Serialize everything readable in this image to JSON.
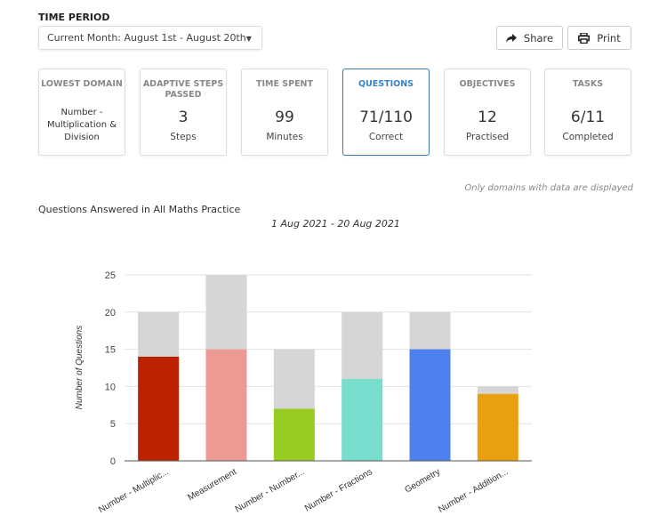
{
  "time_period": {
    "label": "TIME PERIOD",
    "selected": "Current Month: August 1st - August 20th"
  },
  "toolbar": {
    "share_label": "Share",
    "print_label": "Print"
  },
  "cards": [
    {
      "title": "LOWEST DOMAIN",
      "value": "Number - Multiplication & Division",
      "unit": ""
    },
    {
      "title": "ADAPTIVE STEPS PASSED",
      "value": "3",
      "unit": "Steps"
    },
    {
      "title": "TIME SPENT",
      "value": "99",
      "unit": "Minutes"
    },
    {
      "title": "QUESTIONS",
      "value": "71/110",
      "unit": "Correct",
      "active": true
    },
    {
      "title": "OBJECTIVES",
      "value": "12",
      "unit": "Practised"
    },
    {
      "title": "TASKS",
      "value": "6/11",
      "unit": "Completed"
    }
  ],
  "note": "Only domains with data are displayed",
  "chart_title": "Questions Answered in All Maths Practice",
  "chart_subtitle": "1 Aug 2021 - 20 Aug 2021",
  "chart_data": {
    "type": "bar",
    "stacked": true,
    "categories": [
      "Number - Multiplic...",
      "Measurement",
      "Number - Number...",
      "Number - Fractions",
      "Geometry",
      "Number - Addition..."
    ],
    "correct": [
      14,
      15,
      7,
      11,
      15,
      9
    ],
    "total": [
      20,
      25,
      15,
      20,
      20,
      10
    ],
    "colors": [
      "#bb2200",
      "#ee9a94",
      "#99cc22",
      "#77ddcc",
      "#4f80f0",
      "#e8a010"
    ],
    "remainder_color": "#d6d6d6",
    "ylabel": "Number of Questions",
    "ylim": [
      0,
      25
    ],
    "yticks": [
      0,
      5,
      10,
      15,
      20,
      25
    ],
    "grid": true
  }
}
